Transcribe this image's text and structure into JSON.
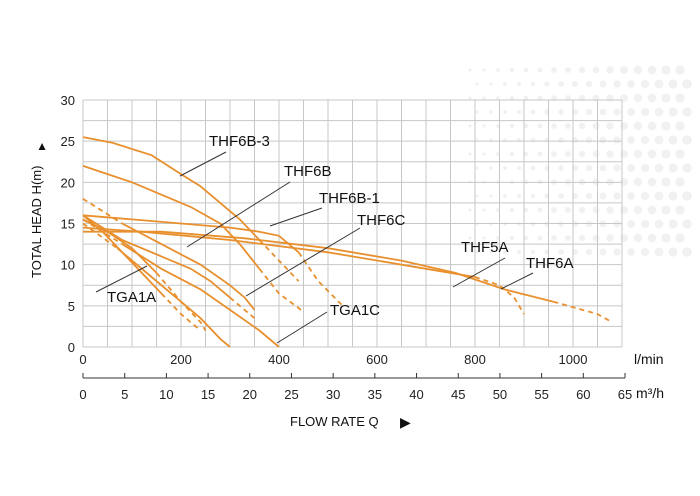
{
  "chart_data": {
    "type": "line",
    "xlabel": "FLOW RATE Q",
    "ylabel": "TOTAL HEAD H(m)",
    "x_unit_primary": "l/min",
    "x_unit_secondary": "m³/h",
    "xlim": [
      0,
      1100
    ],
    "ylim": [
      0,
      30
    ],
    "x_ticks": [
      0,
      200,
      400,
      600,
      800,
      1000
    ],
    "x2_ticks": [
      0,
      5,
      10,
      15,
      20,
      25,
      30,
      35,
      40,
      45,
      50,
      55,
      60,
      65
    ],
    "y_ticks": [
      0,
      5,
      10,
      15,
      20,
      25,
      30
    ],
    "grid": true,
    "line_color": "#e8902e",
    "series": [
      {
        "name": "THF6B-3",
        "x": [
          0,
          60,
          140,
          200,
          240,
          280,
          320,
          360,
          400,
          440
        ],
        "y": [
          25.5,
          24.8,
          23.3,
          21.0,
          19.5,
          17.5,
          15.5,
          13.0,
          10.5,
          8.0
        ],
        "dashed_from": 400
      },
      {
        "name": "THF6B",
        "x": [
          0,
          50,
          100,
          160,
          220,
          280,
          320,
          360,
          400,
          445
        ],
        "y": [
          22.0,
          21.0,
          20.0,
          18.5,
          17.0,
          15.0,
          12.5,
          9.5,
          6.5,
          4.5
        ],
        "dashed_from": 400
      },
      {
        "name": "THF6B-1",
        "x": [
          0,
          100,
          200,
          300,
          360,
          400,
          440,
          480,
          530
        ],
        "y": [
          16.0,
          15.5,
          15.0,
          14.5,
          14.0,
          13.5,
          11.5,
          8.0,
          5.0
        ],
        "dashed_from": 480
      },
      {
        "name": "THF6C",
        "x": [
          0,
          80,
          160,
          240,
          300,
          330,
          350
        ],
        "y": [
          18.0,
          15.0,
          12.5,
          10.0,
          7.5,
          6.0,
          4.5
        ],
        "dashed_from": 0
      },
      {
        "name": "THF5A",
        "x": [
          0,
          120,
          300,
          500,
          700,
          800,
          850,
          880,
          900
        ],
        "y": [
          14.5,
          14.0,
          13.0,
          11.5,
          9.5,
          8.5,
          7.5,
          6.0,
          4.0
        ],
        "dashed_from": 840
      },
      {
        "name": "THF6A",
        "x": [
          0,
          160,
          330,
          500,
          650,
          760,
          860,
          960,
          1050,
          1080
        ],
        "y": [
          14.0,
          14.0,
          13.2,
          12.0,
          10.5,
          9.0,
          7.0,
          5.5,
          4.0,
          3.0
        ],
        "dashed_from": 1040
      },
      {
        "name": "TGA1A",
        "x": [
          0,
          50,
          100,
          150,
          200,
          240,
          250
        ],
        "y": [
          15.5,
          14.0,
          12.0,
          9.0,
          5.5,
          3.0,
          2.0
        ],
        "dashed_from": 200
      },
      {
        "name": "TGA1C",
        "x": [
          0,
          80,
          160,
          240,
          300,
          360,
          400
        ],
        "y": [
          15.5,
          12.5,
          9.5,
          7.0,
          4.5,
          2.0,
          0.0
        ],
        "dashed_from": 0
      },
      {
        "name": "",
        "x": [
          0,
          80,
          160,
          220,
          260,
          300,
          350
        ],
        "y": [
          16.0,
          13.0,
          11.0,
          9.5,
          8.0,
          6.0,
          3.5
        ],
        "dashed_from": 330
      },
      {
        "name": "",
        "x": [
          0,
          70,
          140,
          200,
          240,
          280,
          300
        ],
        "y": [
          15.0,
          12.0,
          8.5,
          5.5,
          3.5,
          1.0,
          0.0
        ],
        "dashed_from": 0
      },
      {
        "name": "",
        "x": [
          0,
          40,
          80,
          120,
          160,
          200,
          240
        ],
        "y": [
          16.0,
          14.0,
          11.5,
          9.0,
          6.5,
          4.0,
          2.0
        ],
        "dashed_from": 200
      }
    ],
    "labels": [
      {
        "text": "THF6B-3",
        "series": 0
      },
      {
        "text": "THF6B",
        "series": 1
      },
      {
        "text": "THF6B-1",
        "series": 2
      },
      {
        "text": "THF6C",
        "series": 3
      },
      {
        "text": "THF5A",
        "series": 4
      },
      {
        "text": "THF6A",
        "series": 5
      },
      {
        "text": "TGA1A",
        "series": 6
      },
      {
        "text": "TGA1C",
        "series": 7
      }
    ]
  },
  "arrow_up": "▲",
  "arrow_right": "▶"
}
